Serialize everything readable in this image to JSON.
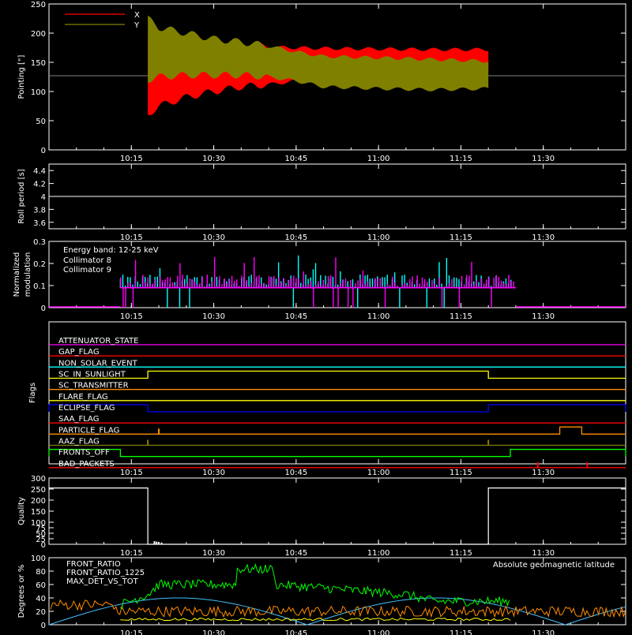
{
  "chart_data": [
    {
      "id": "pointing",
      "type": "area",
      "ylabel": "Pointing [\"]",
      "ylim": [
        0,
        250
      ],
      "yticks": [
        0,
        50,
        100,
        150,
        200,
        250
      ],
      "xlim": [
        "10:00",
        "11:45"
      ],
      "xticks": [
        "10:15",
        "10:30",
        "10:45",
        "11:00",
        "11:15",
        "11:30"
      ],
      "legend": "top-left",
      "series": [
        {
          "name": "X",
          "color": "#ff0000",
          "envelope_time": [
            "10:18",
            "10:20",
            "10:25",
            "10:30",
            "10:35",
            "10:40",
            "10:45",
            "10:50",
            "11:00",
            "11:10",
            "11:20"
          ],
          "upper": [
            195,
            185,
            180,
            178,
            177,
            176,
            175,
            174,
            173,
            172,
            172
          ],
          "lower": [
            60,
            75,
            90,
            100,
            108,
            112,
            118,
            125,
            130,
            133,
            135
          ]
        },
        {
          "name": "Y",
          "color": "#808000",
          "envelope_time": [
            "10:18",
            "10:20",
            "10:25",
            "10:30",
            "10:35",
            "10:40",
            "10:45",
            "10:50",
            "11:00",
            "11:10",
            "11:20"
          ],
          "upper": [
            225,
            210,
            200,
            190,
            185,
            178,
            168,
            160,
            158,
            155,
            152
          ],
          "lower": [
            120,
            125,
            128,
            128,
            128,
            125,
            118,
            108,
            105,
            103,
            105
          ]
        }
      ],
      "baseline": 127,
      "active_range": [
        "10:18",
        "11:20"
      ]
    },
    {
      "id": "roll",
      "type": "line",
      "ylabel": "Roll period [s]",
      "ylim": [
        3.5,
        4.5
      ],
      "yticks": [
        3.6,
        3.8,
        4.0,
        4.2,
        4.4
      ],
      "xticks": [
        "10:15",
        "10:30",
        "10:45",
        "11:00",
        "11:15",
        "11:30"
      ],
      "series": [
        {
          "name": "",
          "color": "#ffffff",
          "x": [
            "10:00",
            "11:45"
          ],
          "y": [
            4.0,
            4.0
          ]
        }
      ]
    },
    {
      "id": "modulation",
      "type": "bar",
      "ylabel": "Normalized modulation",
      "ylim": [
        0,
        0.3
      ],
      "yticks": [
        0,
        0.1,
        0.2,
        0.3
      ],
      "xticks": [
        "10:15",
        "10:30",
        "10:45",
        "11:00",
        "11:15",
        "11:30"
      ],
      "annotation": "Energy band: 12-25 keV",
      "series": [
        {
          "name": "Collimator 8",
          "color": "#00ffff",
          "baseline": 0.09,
          "range": [
            "10:13",
            "11:25"
          ]
        },
        {
          "name": "Collimator 9",
          "color": "#ff00ff",
          "baseline": 0.09,
          "range": [
            "10:13",
            "11:25"
          ]
        }
      ]
    },
    {
      "id": "flags",
      "type": "line",
      "ylabel": "Flags",
      "xticks": [
        "10:15",
        "10:30",
        "10:45",
        "11:00",
        "11:15",
        "11:30"
      ],
      "series": [
        {
          "name": "ATTENUATOR_STATE",
          "color": "#ff00ff",
          "steps": []
        },
        {
          "name": "GAP_FLAG",
          "color": "#ff0000",
          "steps": []
        },
        {
          "name": "NON_SOLAR_EVENT",
          "color": "#00ffff",
          "steps": []
        },
        {
          "name": "SC_IN_SUNLIGHT",
          "color": "#ffff00",
          "steps": [
            [
              "10:18",
              "11:20"
            ]
          ]
        },
        {
          "name": "SC_TRANSMITTER",
          "color": "#ff8c00",
          "steps": []
        },
        {
          "name": "FLARE_FLAG",
          "color": "#ffff00",
          "steps": []
        },
        {
          "name": "ECLIPSE_FLAG",
          "color": "#0000ff",
          "steps": [
            [
              "10:00",
              "10:18"
            ],
            [
              "11:20",
              "11:45"
            ]
          ]
        },
        {
          "name": "SAA_FLAG",
          "color": "#ff0000",
          "steps": []
        },
        {
          "name": "PARTICLE_FLAG",
          "color": "#ff8c00",
          "steps": [
            [
              "11:33",
              "11:37"
            ]
          ],
          "spikes": [
            "10:20"
          ]
        },
        {
          "name": "AAZ_FLAG",
          "color": "#808000",
          "steps": [],
          "spikes": [
            "10:18",
            "11:20"
          ]
        },
        {
          "name": "FRONTS_OFF",
          "color": "#00ff00",
          "steps": [
            [
              "10:00",
              "10:13"
            ],
            [
              "11:24",
              "11:45"
            ]
          ]
        },
        {
          "name": "BAD_PACKETS",
          "color": "#ff0000",
          "steps": [],
          "spikes": [
            "11:29",
            "11:38"
          ]
        }
      ]
    },
    {
      "id": "quality",
      "type": "line",
      "ylabel": "Quality",
      "ylim": [
        0,
        300
      ],
      "yticks": [
        0,
        25,
        50,
        75,
        100,
        150,
        200,
        250,
        300
      ],
      "xticks": [
        "10:15",
        "10:30",
        "10:45",
        "11:00",
        "11:15",
        "11:30"
      ],
      "series": [
        {
          "name": "",
          "color": "#ffffff",
          "x": [
            "10:00",
            "10:18",
            "10:18",
            "11:20",
            "11:20",
            "11:45"
          ],
          "y": [
            255,
            255,
            0,
            0,
            255,
            255
          ]
        }
      ]
    },
    {
      "id": "ratios",
      "type": "line",
      "ylabel": "Degrees or %",
      "ylim": [
        0,
        100
      ],
      "yticks": [
        0,
        20,
        40,
        60,
        80,
        100
      ],
      "xticks": [
        "10:15",
        "10:30",
        "10:45",
        "11:00",
        "11:15",
        "11:30"
      ],
      "annotation": "Absolute geomagnetic latitude",
      "series": [
        {
          "name": "FRONT_RATIO",
          "color": "#ffff00",
          "level": 8
        },
        {
          "name": "FRONT_RATIO_1225",
          "color": "#00ff00",
          "x": [
            "10:13",
            "10:18",
            "10:20",
            "10:34",
            "10:34",
            "10:41",
            "10:41",
            "10:50",
            "11:05",
            "11:10",
            "11:24"
          ],
          "y": [
            30,
            45,
            60,
            60,
            83,
            83,
            60,
            55,
            45,
            35,
            35
          ]
        },
        {
          "name": "MAX_DET_VS_TOT",
          "color": "#ff8c00",
          "level": 20
        },
        {
          "name": "Absolute geomagnetic latitude",
          "color": "#40c0ff",
          "amplitude": 40
        }
      ]
    }
  ]
}
